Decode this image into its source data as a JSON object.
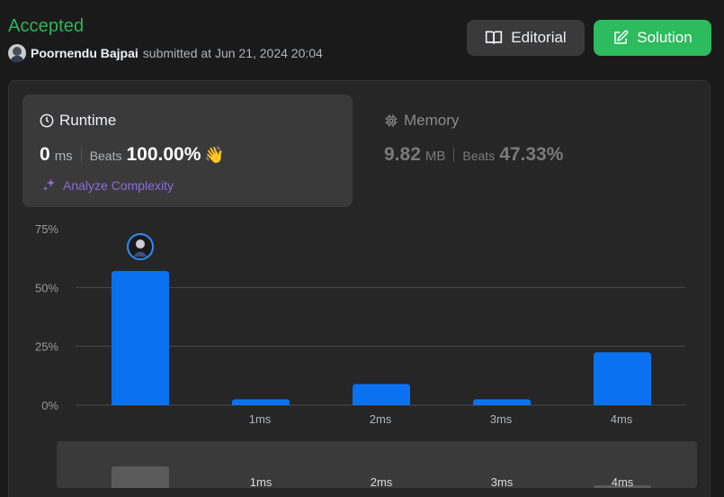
{
  "header": {
    "status": "Accepted",
    "username": "Poornendu Bajpai",
    "submitted_text": "submitted at Jun 21, 2024 20:04"
  },
  "buttons": {
    "editorial": "Editorial",
    "solution": "Solution"
  },
  "runtime": {
    "title": "Runtime",
    "value": "0",
    "unit": "ms",
    "beats_label": "Beats",
    "beats_value": "100.00%",
    "analyze": "Analyze Complexity"
  },
  "memory": {
    "title": "Memory",
    "value": "9.82",
    "unit": "MB",
    "beats_label": "Beats",
    "beats_value": "47.33%"
  },
  "colors": {
    "accepted": "#2db55d",
    "solution_button": "#2cbb5d",
    "bar": "#0a72f0",
    "analyze": "#8e6bd6"
  },
  "chart_data": {
    "type": "bar",
    "categories": [
      "",
      "1ms",
      "2ms",
      "3ms",
      "4ms"
    ],
    "values": [
      57,
      2.5,
      9,
      2.5,
      22.5
    ],
    "y_ticks": [
      "75%",
      "50%",
      "25%",
      "0%"
    ],
    "ylim": [
      0,
      75
    ],
    "grid": true,
    "highlight_index": 0,
    "mini_labels": [
      "1ms",
      "2ms",
      "3ms",
      "4ms"
    ]
  }
}
